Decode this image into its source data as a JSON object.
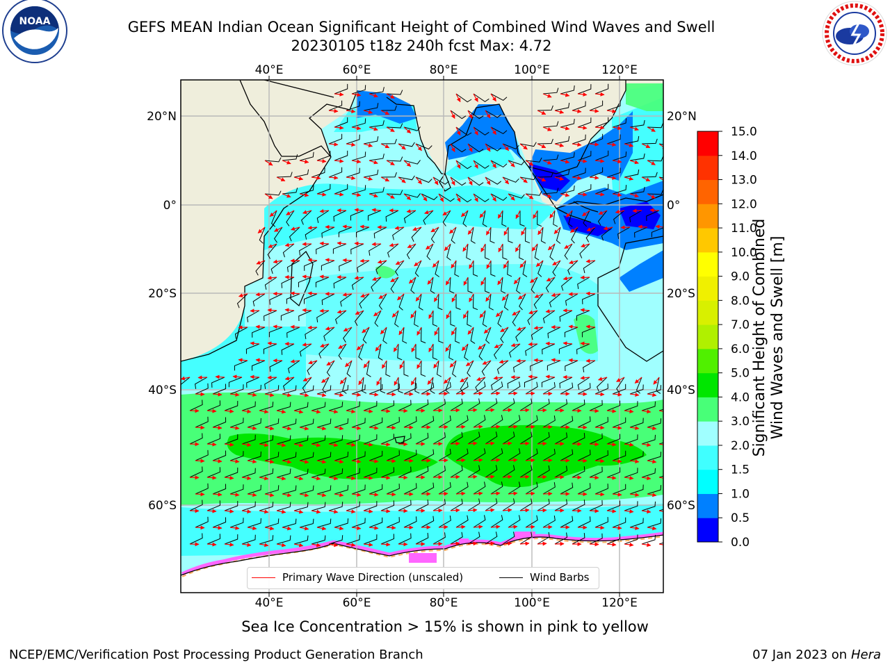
{
  "header": {
    "title_line1": "GEFS MEAN Indian Ocean Significant Height of Combined Wind Waves and Swell",
    "title_line2": "20230105 t18z 240h fcst   Max: 4.72"
  },
  "logos": {
    "left": {
      "name": "noaa-logo",
      "text": "NOAA",
      "ring_text": "NATIONAL OCEANIC AND ATMOSPHERIC ADMINISTRATION · U.S. DEPARTMENT OF COMMERCE"
    },
    "right": {
      "name": "nws-logo",
      "ring_text": "NATIONAL WEATHER SERVICE"
    }
  },
  "map": {
    "lon_range": [
      20,
      130
    ],
    "lat_range": [
      -76,
      28
    ],
    "x_tick_labels": [
      "40°E",
      "60°E",
      "80°E",
      "100°E",
      "120°E"
    ],
    "x_tick_values": [
      40,
      60,
      80,
      100,
      120
    ],
    "y_tick_labels": [
      "20°N",
      "0°",
      "20°S",
      "40°S",
      "60°S"
    ],
    "y_tick_values": [
      20,
      0,
      -20,
      -40,
      -60
    ],
    "grid": true,
    "land_color": "#efeedc"
  },
  "colorbar": {
    "label_line1": "Significant Height of Combined",
    "label_line2": "Wind Waves and Swell [m]",
    "boundaries": [
      "0.0",
      "0.5",
      "1.0",
      "1.5",
      "2.0",
      "3.0",
      "4.0",
      "5.0",
      "6.0",
      "7.0",
      "8.0",
      "9.0",
      "10.0",
      "11.0",
      "12.0",
      "13.0",
      "14.0",
      "15.0"
    ],
    "colors": [
      "#0000ff",
      "#0080ff",
      "#00ffff",
      "#40ffff",
      "#a0ffff",
      "#48ff78",
      "#00e600",
      "#50f000",
      "#b0f000",
      "#d8f000",
      "#f0f000",
      "#ffff00",
      "#ffc800",
      "#ff9600",
      "#ff6400",
      "#ff3200",
      "#ff0000"
    ]
  },
  "legend": {
    "wave_label": "Primary Wave Direction (unscaled)",
    "wind_label": "Wind Barbs",
    "wave_color": "#ff0000",
    "wind_color": "#000000"
  },
  "subtitle": "Sea Ice Concentration > 15% is shown in pink to yellow",
  "footer": {
    "left": "NCEP/EMC/Verification Post Processing Product Generation Branch",
    "right_date": "07 Jan 2023 on ",
    "right_host": "Hera"
  }
}
